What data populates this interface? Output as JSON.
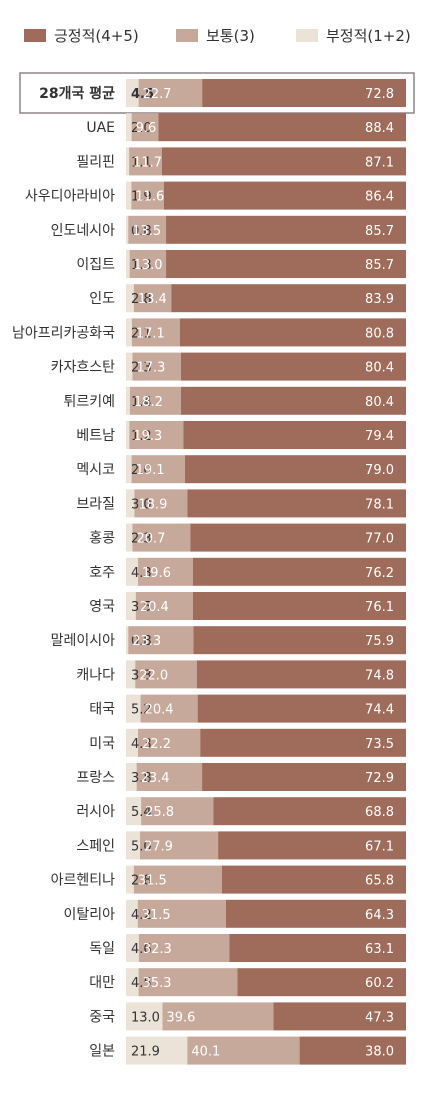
{
  "chart_data": {
    "type": "bar",
    "orientation": "horizontal",
    "stacked": true,
    "legend_position": "top",
    "legend": [
      {
        "key": "negative",
        "label": "부정적(1+2)",
        "color": "#ebe3d8"
      },
      {
        "key": "neutral",
        "label": "보통(3)",
        "color": "#c7a99c"
      },
      {
        "key": "positive",
        "label": "긍정적(4+5)",
        "color": "#9f6c5b"
      }
    ],
    "legend_order": [
      "positive",
      "neutral",
      "negative"
    ],
    "categories": [
      "28개국 평균",
      "UAE",
      "필리핀",
      "사우디아라비아",
      "인도네시아",
      "이집트",
      "인도",
      "남아프리카공화국",
      "카자흐스탄",
      "튀르키예",
      "베트남",
      "멕시코",
      "브라질",
      "홍콩",
      "호주",
      "영국",
      "말레이시아",
      "캐나다",
      "태국",
      "미국",
      "프랑스",
      "러시아",
      "스페인",
      "아르헨티나",
      "이탈리아",
      "독일",
      "대만",
      "중국",
      "일본"
    ],
    "highlight_category": "28개국 평균",
    "series": [
      {
        "key": "negative",
        "name": "부정적(1+2)",
        "color": "#ebe3d8",
        "values": [
          4.5,
          2.0,
          1.1,
          1.9,
          0.8,
          1.3,
          2.8,
          2.1,
          2.3,
          1.4,
          1.2,
          2.0,
          3.0,
          2.3,
          4.3,
          3.5,
          0.8,
          3.3,
          5.2,
          4.3,
          3.8,
          5.4,
          5.0,
          2.8,
          4.2,
          4.6,
          4.5,
          13.0,
          21.9
        ],
        "labels": [
          "4.5",
          "2.0",
          "1.1",
          "1.9",
          "0.8",
          "1.3",
          "2.8",
          "2.1",
          "2.3",
          "1.4",
          "1.2",
          "2.0",
          "3.0",
          "2.3",
          "4.3",
          "3.5",
          "0.8",
          "3.3",
          "5.2",
          "4.3",
          "3.8",
          "5.4",
          "5.0",
          "2.8",
          "4.2",
          "4.6",
          "4.5",
          "13.0",
          "21.9"
        ]
      },
      {
        "key": "neutral",
        "name": "보통(3)",
        "color": "#c7a99c",
        "values": [
          22.7,
          9.6,
          11.7,
          11.6,
          13.5,
          13.0,
          13.4,
          17.1,
          17.3,
          18.2,
          19.3,
          19.1,
          18.9,
          20.7,
          19.6,
          20.4,
          23.3,
          22.0,
          20.4,
          22.2,
          23.4,
          25.8,
          27.9,
          31.5,
          31.5,
          32.3,
          35.3,
          39.6,
          40.1
        ],
        "labels": [
          "22.7",
          "9.6",
          "11.7",
          "11.6",
          "13.5",
          "13.0",
          "13.4",
          "17.1",
          "17.3",
          "18.2",
          "19.3",
          "19.1",
          "18.9",
          "20.7",
          "19.6",
          "20.4",
          "23.3",
          "22.0",
          "20.4",
          "22.2",
          "23.4",
          "25.8",
          "27.9",
          "31.5",
          "31.5",
          "32.3",
          "35.3",
          "39.6",
          "40.1"
        ]
      },
      {
        "key": "positive",
        "name": "긍정적(4+5)",
        "color": "#9f6c5b",
        "values": [
          72.8,
          88.4,
          87.1,
          86.4,
          85.7,
          85.7,
          83.9,
          80.8,
          80.4,
          80.4,
          79.4,
          79.0,
          78.1,
          77.0,
          76.2,
          76.1,
          75.9,
          74.8,
          74.4,
          73.5,
          72.9,
          68.8,
          67.1,
          65.8,
          64.3,
          63.1,
          60.2,
          47.3,
          38.0
        ],
        "labels": [
          "72.8",
          "88.4",
          "87.1",
          "86.4",
          "85.7",
          "85.7",
          "83.9",
          "80.8",
          "80.4",
          "80.4",
          "79.4",
          "79.0",
          "78.1",
          "77.0",
          "76.2",
          "76.1",
          "75.9",
          "74.8",
          "74.4",
          "73.5",
          "72.9",
          "68.8",
          "67.1",
          "65.8",
          "64.3",
          "63.1",
          "60.2",
          "47.3",
          "38.0"
        ]
      }
    ]
  }
}
